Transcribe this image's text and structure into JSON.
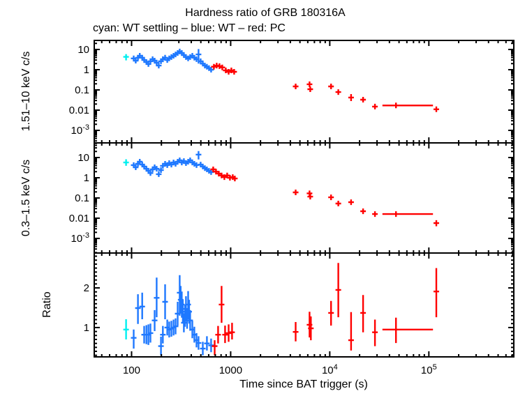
{
  "title": "Hardness ratio of GRB 180316A",
  "legend": "cyan: WT settling – blue: WT – red: PC",
  "colors": {
    "wt_settling": "#00EFEF",
    "wt": "#1E78FF",
    "pc": "#FF0000",
    "axis": "#000000",
    "background": "#FFFFFF"
  },
  "xaxis": {
    "label": "Time since BAT trigger (s)",
    "scale": "log",
    "lim": [
      42,
      720000
    ],
    "ticks": [
      {
        "v": 100,
        "label": "100"
      },
      {
        "v": 1000,
        "label": "1000"
      },
      {
        "v": 10000,
        "label": "10^4"
      },
      {
        "v": 100000,
        "label": "10^5"
      }
    ]
  },
  "chart_data": [
    {
      "type": "scatter",
      "panel": "hard-band-rate",
      "ylabel": "1.51–10 keV c/s",
      "yscale": "log",
      "ylim": [
        0.00024,
        28
      ],
      "yticks": [
        {
          "v": 10,
          "label": "10"
        },
        {
          "v": 1,
          "label": "1"
        },
        {
          "v": 0.1,
          "label": "0.1"
        },
        {
          "v": 0.01,
          "label": "0.01"
        },
        {
          "v": 0.001,
          "label": "10^-3"
        }
      ],
      "series": [
        {
          "name": "WT settling",
          "color_key": "wt_settling",
          "points": [
            [
              88,
              4.3,
              2.9,
              5.8
            ]
          ]
        },
        {
          "name": "WT",
          "color_key": "wt",
          "points": [
            [
              105,
              3.6
            ],
            [
              110,
              2.8
            ],
            [
              116,
              3.9
            ],
            [
              121,
              4.9
            ],
            [
              128,
              3.9
            ],
            [
              134,
              3.0
            ],
            [
              141,
              2.4
            ],
            [
              148,
              1.9
            ],
            [
              155,
              2.6
            ],
            [
              163,
              3.3
            ],
            [
              171,
              2.8
            ],
            [
              179,
              2.2
            ],
            [
              188,
              1.6,
              1.2,
              2.2
            ],
            [
              198,
              2.6
            ],
            [
              207,
              3.3
            ],
            [
              218,
              3.9
            ],
            [
              229,
              3.0
            ],
            [
              240,
              3.6
            ],
            [
              252,
              4.2
            ],
            [
              265,
              4.9
            ],
            [
              278,
              5.7
            ],
            [
              292,
              6.7
            ],
            [
              306,
              7.9
            ],
            [
              321,
              6.7
            ],
            [
              337,
              5.3
            ],
            [
              354,
              4.2
            ],
            [
              372,
              3.6
            ],
            [
              390,
              4.2
            ],
            [
              410,
              4.9
            ],
            [
              430,
              3.9
            ],
            [
              452,
              3.3
            ],
            [
              474,
              5.7,
              2.0,
              10.5
            ],
            [
              498,
              2.6
            ],
            [
              523,
              2.0
            ],
            [
              549,
              1.6
            ],
            [
              576,
              1.4
            ],
            [
              605,
              1.2
            ],
            [
              635,
              1.0
            ]
          ]
        },
        {
          "name": "PC",
          "color_key": "pc",
          "points": [
            [
              677,
              1.4,
              1.1,
              1.75
            ],
            [
              723,
              1.6,
              1.3,
              1.95
            ],
            [
              771,
              1.5,
              1.2,
              1.85
            ],
            [
              823,
              1.3,
              1.05,
              1.6
            ],
            [
              893,
              0.92,
              0.75,
              1.12
            ],
            [
              953,
              0.79,
              0.63,
              0.97
            ],
            [
              1016,
              0.92,
              0.74,
              1.13
            ],
            [
              1084,
              0.79,
              0.62,
              0.99
            ],
            [
              4530,
              0.149,
              0.118,
              0.19
            ],
            [
              6250,
              0.19,
              0.15,
              0.24
            ],
            [
              6350,
              0.108,
              0.085,
              0.135
            ],
            [
              10300,
              0.149,
              0.12,
              0.185
            ],
            [
              12200,
              0.078,
              0.06,
              0.1
            ],
            [
              16400,
              0.042,
              0.028,
              0.062
            ],
            [
              21700,
              0.033,
              0.026,
              0.042
            ],
            [
              28600,
              0.015,
              0.011,
              0.02
            ],
            [
              46600,
              0.017,
              0.013,
              0.021,
              34000,
              110000
            ],
            [
              119000,
              0.011,
              0.008,
              0.014
            ]
          ]
        }
      ]
    },
    {
      "type": "scatter",
      "panel": "soft-band-rate",
      "ylabel": "0.3–1.5 keV c/s",
      "yscale": "log",
      "ylim": [
        0.00019,
        53
      ],
      "yticks": [
        {
          "v": 10,
          "label": "10"
        },
        {
          "v": 1,
          "label": "1"
        },
        {
          "v": 0.1,
          "label": "0.1"
        },
        {
          "v": 0.01,
          "label": "0.01"
        },
        {
          "v": 0.001,
          "label": "10^-3"
        }
      ],
      "series": [
        {
          "name": "WT settling",
          "color_key": "wt_settling",
          "points": [
            [
              88,
              5.7,
              3.9,
              8.2
            ]
          ]
        },
        {
          "name": "WT",
          "color_key": "wt",
          "points": [
            [
              105,
              4.2
            ],
            [
              110,
              3.3
            ],
            [
              116,
              4.9
            ],
            [
              121,
              6.2
            ],
            [
              128,
              4.5
            ],
            [
              134,
              3.6
            ],
            [
              141,
              2.8
            ],
            [
              148,
              2.2
            ],
            [
              155,
              1.7
            ],
            [
              163,
              2.6
            ],
            [
              171,
              3.3
            ],
            [
              179,
              2.8
            ],
            [
              188,
              1.5,
              1.1,
              2.1
            ],
            [
              198,
              2.4
            ],
            [
              207,
              3.9
            ],
            [
              218,
              4.9
            ],
            [
              229,
              4.2
            ],
            [
              240,
              5.3
            ],
            [
              252,
              4.5
            ],
            [
              265,
              5.7
            ],
            [
              278,
              4.9
            ],
            [
              292,
              6.2
            ],
            [
              306,
              7.3
            ],
            [
              321,
              5.7
            ],
            [
              337,
              6.7
            ],
            [
              354,
              5.3
            ],
            [
              372,
              6.2
            ],
            [
              390,
              7.3
            ],
            [
              410,
              5.7
            ],
            [
              430,
              4.9
            ],
            [
              452,
              4.2
            ],
            [
              474,
              14,
              8,
              21
            ],
            [
              498,
              4.5
            ],
            [
              523,
              3.6
            ],
            [
              549,
              3.0
            ],
            [
              576,
              2.6
            ],
            [
              605,
              2.2
            ],
            [
              635,
              1.9
            ]
          ]
        },
        {
          "name": "PC",
          "color_key": "pc",
          "points": [
            [
              666,
              2.6,
              2.1,
              3.2
            ],
            [
              711,
              2.0,
              1.6,
              2.5
            ],
            [
              759,
              1.6,
              1.3,
              2.0
            ],
            [
              810,
              1.3,
              1.05,
              1.6
            ],
            [
              864,
              1.08,
              0.88,
              1.32
            ],
            [
              922,
              1.3,
              1.05,
              1.6
            ],
            [
              984,
              1.0,
              0.8,
              1.25
            ],
            [
              1050,
              1.08,
              0.87,
              1.33
            ],
            [
              1102,
              0.92,
              0.73,
              1.15
            ],
            [
              4530,
              0.19,
              0.15,
              0.24
            ],
            [
              6250,
              0.17,
              0.13,
              0.21
            ],
            [
              6350,
              0.117,
              0.09,
              0.15
            ],
            [
              10300,
              0.108,
              0.085,
              0.135
            ],
            [
              12200,
              0.053,
              0.04,
              0.07
            ],
            [
              16400,
              0.062,
              0.045,
              0.085
            ],
            [
              21700,
              0.022,
              0.016,
              0.03
            ],
            [
              28600,
              0.016,
              0.012,
              0.021
            ],
            [
              46600,
              0.016,
              0.012,
              0.02,
              34000,
              110000
            ],
            [
              119000,
              0.0057,
              0.004,
              0.008
            ]
          ]
        }
      ]
    },
    {
      "type": "scatter",
      "panel": "hardness-ratio",
      "ylabel": "Ratio",
      "yscale": "linear",
      "ylim": [
        0.26,
        2.88
      ],
      "yticks": [
        {
          "v": 1,
          "label": "1"
        },
        {
          "v": 2,
          "label": "2"
        }
      ],
      "series": [
        {
          "name": "WT settling",
          "color_key": "wt_settling",
          "points": [
            [
              88,
              0.95,
              0.7,
              1.21
            ]
          ]
        },
        {
          "name": "WT",
          "color_key": "wt",
          "points": [
            [
              105,
              0.74,
              0.47,
              0.95
            ],
            [
              116,
              1.49,
              1.09,
              1.84
            ],
            [
              128,
              1.53,
              1.21,
              1.88
            ],
            [
              134,
              0.82,
              0.6,
              1.04
            ],
            [
              141,
              0.82,
              0.58,
              1.06
            ],
            [
              148,
              0.82,
              0.56,
              1.08
            ],
            [
              155,
              0.86,
              0.62,
              1.1
            ],
            [
              171,
              1.18,
              0.91,
              1.44
            ],
            [
              179,
              1.75,
              1.26,
              2.26
            ],
            [
              198,
              0.53,
              0.3,
              0.77
            ],
            [
              207,
              0.82,
              0.6,
              1.04
            ],
            [
              218,
              1.65,
              1.21,
              2.09
            ],
            [
              229,
              1.0,
              0.8,
              1.2
            ],
            [
              240,
              0.95,
              0.75,
              1.15
            ],
            [
              252,
              0.97,
              0.77,
              1.17
            ],
            [
              265,
              1.0,
              0.8,
              1.2
            ],
            [
              278,
              1.03,
              0.83,
              1.23
            ],
            [
              292,
              1.35,
              1.05,
              1.65
            ],
            [
              306,
              1.88,
              1.3,
              2.32
            ],
            [
              313,
              1.7,
              1.35,
              2.05
            ],
            [
              321,
              1.58,
              1.25,
              1.91
            ],
            [
              329,
              1.4,
              1.1,
              1.7
            ],
            [
              337,
              1.12,
              0.88,
              1.36
            ],
            [
              346,
              1.3,
              1.02,
              1.58
            ],
            [
              354,
              1.47,
              1.15,
              1.79
            ],
            [
              363,
              1.23,
              0.97,
              1.49
            ],
            [
              372,
              1.58,
              1.24,
              1.92
            ],
            [
              381,
              1.4,
              1.1,
              1.7
            ],
            [
              390,
              1.18,
              0.92,
              1.44
            ],
            [
              410,
              0.95,
              0.73,
              1.17
            ],
            [
              430,
              0.82,
              0.62,
              1.02
            ],
            [
              452,
              0.68,
              0.5,
              0.86
            ],
            [
              474,
              0.61,
              0.44,
              0.78
            ],
            [
              523,
              0.47,
              0.3,
              0.64
            ],
            [
              576,
              0.6,
              0.42,
              0.78
            ],
            [
              635,
              0.55,
              0.38,
              0.72
            ]
          ]
        },
        {
          "name": "PC",
          "color_key": "pc",
          "points": [
            [
              689,
              0.53,
              0.3,
              0.68
            ],
            [
              747,
              0.82,
              0.6,
              1.04
            ],
            [
              810,
              1.58,
              1.12,
              2.05
            ],
            [
              878,
              0.82,
              0.61,
              1.05
            ],
            [
              953,
              0.86,
              0.64,
              1.08
            ],
            [
              1033,
              0.88,
              0.7,
              1.12
            ],
            [
              4530,
              0.89,
              0.65,
              1.14
            ],
            [
              6250,
              1.07,
              0.75,
              1.4
            ],
            [
              6450,
              0.98,
              0.68,
              1.28
            ],
            [
              10300,
              1.37,
              1.05,
              1.67
            ],
            [
              12200,
              1.95,
              1.26,
              2.63
            ],
            [
              16400,
              0.68,
              0.42,
              1.39
            ],
            [
              21700,
              1.37,
              0.88,
              1.82
            ],
            [
              28600,
              0.88,
              0.53,
              1.2
            ],
            [
              46600,
              0.95,
              0.61,
              1.25,
              34000,
              110000
            ],
            [
              119000,
              1.91,
              1.26,
              2.5
            ]
          ]
        }
      ]
    }
  ]
}
